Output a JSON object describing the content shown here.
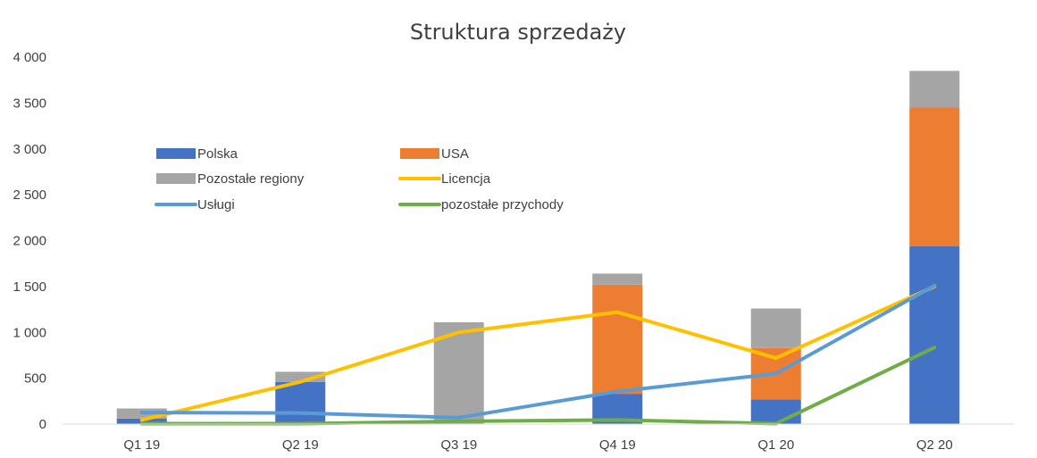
{
  "chart_data": {
    "type": "bar",
    "title": "Struktura sprzedaży",
    "categories": [
      "Q1 19",
      "Q2 19",
      "Q3 19",
      "Q4 19",
      "Q1 20",
      "Q2 20"
    ],
    "ylim": [
      0,
      4000
    ],
    "yticks": [
      0,
      500,
      1000,
      1500,
      2000,
      2500,
      3000,
      3500,
      4000
    ],
    "ytick_labels": [
      "0",
      "500",
      "1 000",
      "1 500",
      "2 000",
      "2 500",
      "3 000",
      "3 500",
      "4 000"
    ],
    "grid": false,
    "legend_position": "top-left inside",
    "stacked_series": [
      {
        "name": "Polska",
        "color": "#4472C4",
        "values": [
          60,
          460,
          0,
          330,
          270,
          1940
        ]
      },
      {
        "name": "USA",
        "color": "#ED7D31",
        "values": [
          0,
          0,
          0,
          1190,
          560,
          1510
        ]
      },
      {
        "name": "Pozostałe regiony",
        "color": "#A5A5A5",
        "values": [
          110,
          110,
          1110,
          120,
          430,
          400
        ]
      }
    ],
    "line_series": [
      {
        "name": "Licencja",
        "color": "#FFC000",
        "values": [
          45,
          460,
          1000,
          1220,
          720,
          1500
        ]
      },
      {
        "name": "Usługi",
        "color": "#5B9BD5",
        "values": [
          125,
          120,
          70,
          355,
          550,
          1510
        ]
      },
      {
        "name": "pozostałe przychody",
        "color": "#70AD47",
        "values": [
          5,
          5,
          30,
          45,
          5,
          835
        ]
      }
    ],
    "legend": [
      "Polska",
      "USA",
      "Pozostałe regiony",
      "Licencja",
      "Usługi",
      "pozostałe przychody"
    ]
  }
}
